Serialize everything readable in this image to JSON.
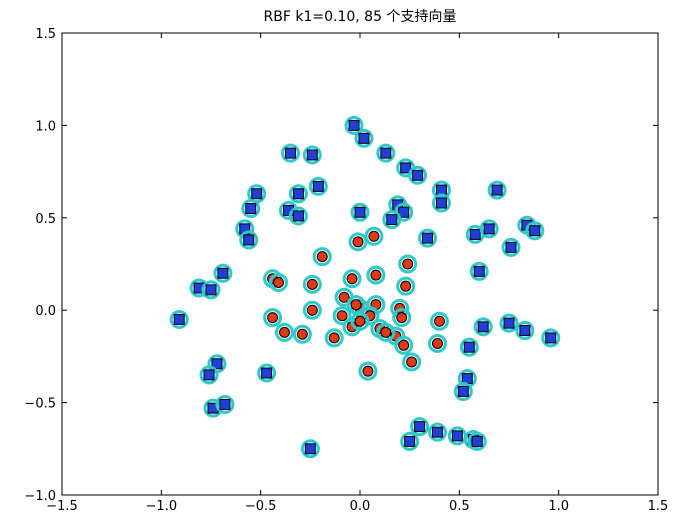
{
  "chart_data": {
    "type": "scatter",
    "title": "RBF k1=0.10, 85 个支持向量",
    "xlabel": "",
    "ylabel": "",
    "xlim": [
      -1.5,
      1.5
    ],
    "ylim": [
      -1.0,
      1.5
    ],
    "xticks": [
      -1.5,
      -1.0,
      -0.5,
      0.0,
      0.5,
      1.0,
      1.5
    ],
    "yticks": [
      -1.0,
      -0.5,
      0.0,
      0.5,
      1.0,
      1.5
    ],
    "xtick_labels": [
      "−1.5",
      "−1.0",
      "−0.5",
      "0.0",
      "0.5",
      "1.0",
      "1.5"
    ],
    "ytick_labels": [
      "−1.0",
      "−0.5",
      "0.0",
      "0.5",
      "1.0",
      "1.5"
    ],
    "grid": false,
    "colors": {
      "square_fill": "#1f3fd9",
      "circle_fill": "#dd3a1a",
      "marker_edge": "#000000",
      "support_ring": "#2ec9c9"
    },
    "series": [
      {
        "marker": "square",
        "points": [
          [
            -0.03,
            1.0
          ],
          [
            0.02,
            0.93
          ],
          [
            -0.35,
            0.85
          ],
          [
            -0.24,
            0.84
          ],
          [
            0.13,
            0.85
          ],
          [
            0.23,
            0.77
          ],
          [
            0.29,
            0.73
          ],
          [
            -0.52,
            0.63
          ],
          [
            -0.31,
            0.63
          ],
          [
            -0.21,
            0.67
          ],
          [
            0.41,
            0.65
          ],
          [
            0.69,
            0.65
          ],
          [
            0.19,
            0.57
          ],
          [
            0.41,
            0.58
          ],
          [
            -0.36,
            0.54
          ],
          [
            -0.31,
            0.51
          ],
          [
            -0.55,
            0.55
          ],
          [
            0.0,
            0.53
          ],
          [
            0.22,
            0.53
          ],
          [
            0.16,
            0.49
          ],
          [
            -0.58,
            0.44
          ],
          [
            -0.56,
            0.38
          ],
          [
            0.34,
            0.39
          ],
          [
            0.58,
            0.41
          ],
          [
            0.65,
            0.44
          ],
          [
            0.76,
            0.34
          ],
          [
            0.84,
            0.46
          ],
          [
            0.88,
            0.43
          ],
          [
            0.6,
            0.21
          ],
          [
            -0.69,
            0.2
          ],
          [
            -0.81,
            0.12
          ],
          [
            -0.75,
            0.11
          ],
          [
            -0.91,
            -0.05
          ],
          [
            0.55,
            -0.2
          ],
          [
            0.62,
            -0.09
          ],
          [
            0.75,
            -0.07
          ],
          [
            0.83,
            -0.11
          ],
          [
            0.96,
            -0.15
          ],
          [
            -0.72,
            -0.29
          ],
          [
            -0.76,
            -0.35
          ],
          [
            -0.47,
            -0.34
          ],
          [
            0.54,
            -0.37
          ],
          [
            0.52,
            -0.44
          ],
          [
            -0.74,
            -0.53
          ],
          [
            -0.68,
            -0.51
          ],
          [
            0.3,
            -0.63
          ],
          [
            0.39,
            -0.66
          ],
          [
            0.49,
            -0.68
          ],
          [
            0.57,
            -0.7
          ],
          [
            0.59,
            -0.71
          ],
          [
            0.25,
            -0.71
          ],
          [
            -0.25,
            -0.75
          ]
        ]
      },
      {
        "marker": "circle",
        "points": [
          [
            -0.01,
            0.37
          ],
          [
            0.07,
            0.4
          ],
          [
            -0.19,
            0.29
          ],
          [
            0.24,
            0.25
          ],
          [
            -0.44,
            0.17
          ],
          [
            -0.41,
            0.15
          ],
          [
            -0.24,
            0.14
          ],
          [
            -0.04,
            0.17
          ],
          [
            0.08,
            0.19
          ],
          [
            0.23,
            0.13
          ],
          [
            -0.08,
            0.07
          ],
          [
            0.0,
            0.01
          ],
          [
            0.08,
            0.03
          ],
          [
            0.2,
            0.01
          ],
          [
            -0.24,
            0.0
          ],
          [
            -0.44,
            -0.04
          ],
          [
            -0.09,
            -0.03
          ],
          [
            0.05,
            -0.03
          ],
          [
            0.21,
            -0.04
          ],
          [
            0.4,
            -0.06
          ],
          [
            -0.38,
            -0.12
          ],
          [
            -0.29,
            -0.13
          ],
          [
            -0.13,
            -0.15
          ],
          [
            -0.04,
            -0.09
          ],
          [
            0.1,
            -0.1
          ],
          [
            0.18,
            -0.14
          ],
          [
            0.22,
            -0.19
          ],
          [
            0.39,
            -0.18
          ],
          [
            0.26,
            -0.28
          ],
          [
            0.04,
            -0.33
          ],
          [
            0.0,
            -0.06
          ],
          [
            0.13,
            -0.12
          ],
          [
            -0.02,
            0.03
          ]
        ]
      }
    ]
  }
}
